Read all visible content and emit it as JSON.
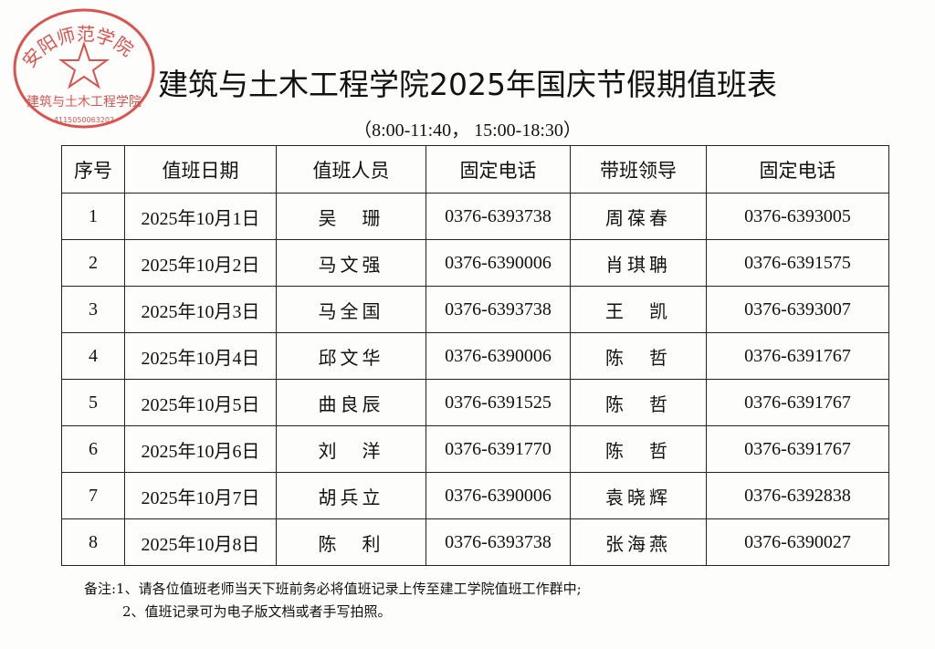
{
  "stamp": {
    "text": "安阳师范学院",
    "inner": "建筑与土木工程学院",
    "code": "4115050063202",
    "color": "#d9534f"
  },
  "title": "建筑与土木工程学院2025年国庆节假期值班表",
  "subtitle": "（8:00-11:40， 15:00-18:30）",
  "table": {
    "headers": [
      "序号",
      "值班日期",
      "值班人员",
      "固定电话",
      "带班领导",
      "固定电话"
    ],
    "rows": [
      [
        "1",
        "2025年10月1日",
        "吴　珊",
        "0376-6393738",
        "周葆春",
        "0376-6393005"
      ],
      [
        "2",
        "2025年10月2日",
        "马文强",
        "0376-6390006",
        "肖琪聃",
        "0376-6391575"
      ],
      [
        "3",
        "2025年10月3日",
        "马全国",
        "0376-6393738",
        "王　凯",
        "0376-6393007"
      ],
      [
        "4",
        "2025年10月4日",
        "邱文华",
        "0376-6390006",
        "陈　哲",
        "0376-6391767"
      ],
      [
        "5",
        "2025年10月5日",
        "曲良辰",
        "0376-6391525",
        "陈　哲",
        "0376-6391767"
      ],
      [
        "6",
        "2025年10月6日",
        "刘　洋",
        "0376-6391770",
        "陈　哲",
        "0376-6391767"
      ],
      [
        "7",
        "2025年10月7日",
        "胡兵立",
        "0376-6390006",
        "袁晓辉",
        "0376-6392838"
      ],
      [
        "8",
        "2025年10月8日",
        "陈　利",
        "0376-6393738",
        "张海燕",
        "0376-6390027"
      ]
    ]
  },
  "notes": [
    "备注:1、请各位值班老师当天下班前务必将值班记录上传至建工学院值班工作群中;",
    "2、值班记录可为电子版文档或者手写拍照。"
  ]
}
